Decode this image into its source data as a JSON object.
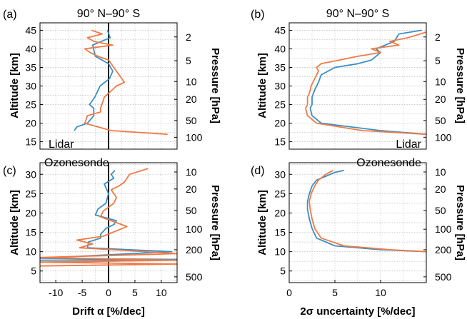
{
  "colors": {
    "blue": "#3a8fc4",
    "orange": "#f07a45",
    "zero_line": "#000000",
    "grid": "#bdbdbd"
  },
  "chart_data": [
    {
      "type": "line",
      "panel_label": "(a)",
      "title": "90° N–90° S",
      "inset_label": "Lidar",
      "xlabel": "",
      "ylabel": "Altitude [km]",
      "y2label": "Pressure [hPa]",
      "xlim": [
        -13,
        13
      ],
      "ylim": [
        13,
        47
      ],
      "xticks": [],
      "yticks": [
        15,
        20,
        25,
        30,
        35,
        40,
        45
      ],
      "y2ticks": [
        {
          "alt": 43.2,
          "label": "2"
        },
        {
          "alt": 36.8,
          "label": "5"
        },
        {
          "alt": 31.2,
          "label": "10"
        },
        {
          "alt": 26.4,
          "label": "20"
        },
        {
          "alt": 20.7,
          "label": "50"
        },
        {
          "alt": 16.2,
          "label": "100"
        }
      ],
      "zero_line": true,
      "series": [
        {
          "color": "blue",
          "x": [
            -6.5,
            -6.0,
            -4.0,
            -2.8,
            -2.8,
            -3.6,
            -2.6,
            -1.6,
            0.2,
            0.8,
            0.0,
            -2.5,
            -3.0,
            0.3,
            -0.2
          ],
          "y": [
            18,
            19,
            20,
            22,
            24,
            25,
            27,
            30,
            32,
            34,
            36,
            38,
            41,
            43,
            45
          ]
        },
        {
          "color": "orange",
          "x": [
            11.2,
            0.5,
            -4.5,
            -4.0,
            -1.5,
            -1.5,
            -0.8,
            1.5,
            3.0,
            2.0,
            1.0,
            0.0,
            -2.0,
            -3.5,
            -4.5,
            0.8,
            -2.8,
            -4.0,
            -1.2,
            -3.2
          ],
          "y": [
            17,
            18,
            20,
            22,
            23,
            24,
            27,
            30,
            31,
            33,
            35,
            37,
            38,
            39,
            40,
            41,
            42,
            43,
            44,
            45
          ]
        }
      ]
    },
    {
      "type": "line",
      "panel_label": "(b)",
      "title": "90° N–90° S",
      "inset_label": "Lidar",
      "xlabel": "",
      "ylabel": "Altitude [km]",
      "y2label": "Pressure [hPa]",
      "xlim": [
        0,
        15
      ],
      "ylim": [
        13,
        47
      ],
      "xticks": [],
      "yticks": [
        15,
        20,
        25,
        30,
        35,
        40,
        45
      ],
      "y2ticks": [
        {
          "alt": 43.2,
          "label": "2"
        },
        {
          "alt": 36.8,
          "label": "5"
        },
        {
          "alt": 31.2,
          "label": "10"
        },
        {
          "alt": 26.4,
          "label": "20"
        },
        {
          "alt": 20.7,
          "label": "50"
        },
        {
          "alt": 16.2,
          "label": "100"
        }
      ],
      "zero_line": false,
      "series": [
        {
          "color": "blue",
          "x": [
            15,
            10,
            3.5,
            2.5,
            2.3,
            2.5,
            2.5,
            2.8,
            3.2,
            3.5,
            5.0,
            7.5,
            9.0,
            9.5,
            10.0,
            9.5,
            11.5,
            12.0,
            14.5
          ],
          "y": [
            17,
            18,
            20,
            22,
            24,
            25,
            27,
            29,
            31,
            33,
            35,
            36,
            37,
            38,
            39,
            40,
            42,
            44,
            45
          ]
        },
        {
          "color": "orange",
          "x": [
            15,
            8,
            3.0,
            2.0,
            1.8,
            2.0,
            2.0,
            2.2,
            2.4,
            2.8,
            3.2,
            3.0,
            3.5,
            5.5,
            7.5,
            10.0,
            9.0,
            12.0,
            11.0,
            13.0,
            15.0
          ],
          "y": [
            17,
            18,
            20,
            22,
            24,
            25,
            27,
            28,
            30,
            32,
            34,
            35,
            36,
            37,
            38,
            39,
            40,
            41,
            42,
            43,
            44.5
          ]
        }
      ]
    },
    {
      "type": "line",
      "panel_label": "(c)",
      "title": "",
      "inset_label": "Ozonesonde",
      "xlabel": "Drift α [%/dec]",
      "ylabel": "Altitude [km]",
      "y2label": "Pressure [hPa]",
      "xlim": [
        -13,
        13
      ],
      "ylim": [
        2,
        33
      ],
      "xticks": [
        -10,
        -5,
        0,
        5,
        10
      ],
      "yticks": [
        5,
        10,
        15,
        20,
        25,
        30
      ],
      "y2ticks": [
        {
          "alt": 3.5,
          "label": "500"
        },
        {
          "alt": 10.5,
          "label": "200"
        },
        {
          "alt": 15.8,
          "label": "100"
        },
        {
          "alt": 20.6,
          "label": "50"
        },
        {
          "alt": 26.2,
          "label": "20"
        },
        {
          "alt": 30.6,
          "label": "10"
        }
      ],
      "zero_line": true,
      "series": [
        {
          "color": "blue",
          "x": [
            -13,
            13,
            -13,
            12,
            -4.0,
            -3.8,
            -1.5,
            -1.5,
            -0.5,
            1.0,
            1.5,
            -2.5,
            -2.0,
            -0.5,
            0.0,
            -0.8,
            1.0,
            0.5,
            1.2
          ],
          "y": [
            7.8,
            8.0,
            8.3,
            10.0,
            11.0,
            12.5,
            13.5,
            14.5,
            16.0,
            17.0,
            18.0,
            19.5,
            21.0,
            22.5,
            25.0,
            27.5,
            29.0,
            30.0,
            31.0
          ]
        },
        {
          "color": "orange",
          "x": [
            -13,
            13,
            -13,
            13,
            -13,
            13,
            -5.5,
            -3.0,
            -6.0,
            -1.0,
            3.5,
            -1.5,
            -1.0,
            1.0,
            1.5,
            0.5,
            2.0,
            3.0,
            3.5,
            4.0,
            7.5
          ],
          "y": [
            6.3,
            6.8,
            7.3,
            7.8,
            8.5,
            9.5,
            11.0,
            12.0,
            13.0,
            14.0,
            16.5,
            19.0,
            20.5,
            22.5,
            24.0,
            26.0,
            27.0,
            28.0,
            29.0,
            30.0,
            31.5
          ]
        }
      ]
    },
    {
      "type": "line",
      "panel_label": "(d)",
      "title": "",
      "inset_label": "Ozonesonde",
      "xlabel": "2σ uncertainty [%/dec]",
      "ylabel": "Altitude [km]",
      "y2label": "Pressure [hPa]",
      "xlim": [
        0,
        15
      ],
      "ylim": [
        2,
        33
      ],
      "xticks": [
        0,
        5,
        10
      ],
      "yticks": [
        5,
        10,
        15,
        20,
        25,
        30
      ],
      "y2ticks": [
        {
          "alt": 3.5,
          "label": "500"
        },
        {
          "alt": 10.5,
          "label": "200"
        },
        {
          "alt": 15.8,
          "label": "100"
        },
        {
          "alt": 20.6,
          "label": "50"
        },
        {
          "alt": 26.2,
          "label": "20"
        },
        {
          "alt": 30.6,
          "label": "10"
        }
      ],
      "zero_line": false,
      "series": [
        {
          "color": "blue",
          "x": [
            15,
            10,
            5.0,
            3.0,
            2.5,
            2.2,
            2.0,
            2.0,
            2.2,
            2.5,
            3.0,
            4.0,
            5.0,
            6.0
          ],
          "y": [
            10,
            10.5,
            11.5,
            13.5,
            16.0,
            18.5,
            21.0,
            23.0,
            25.0,
            27.0,
            28.5,
            29.5,
            30.5,
            31.0
          ]
        },
        {
          "color": "orange",
          "x": [
            15,
            11,
            6.0,
            3.5,
            2.8,
            2.5,
            2.3,
            2.2,
            2.4,
            2.8,
            3.2,
            4.0,
            4.8
          ],
          "y": [
            10,
            10.5,
            11.5,
            13.5,
            16.0,
            18.5,
            21.0,
            23.0,
            25.0,
            27.0,
            28.5,
            30.0,
            31.0
          ]
        }
      ]
    }
  ]
}
